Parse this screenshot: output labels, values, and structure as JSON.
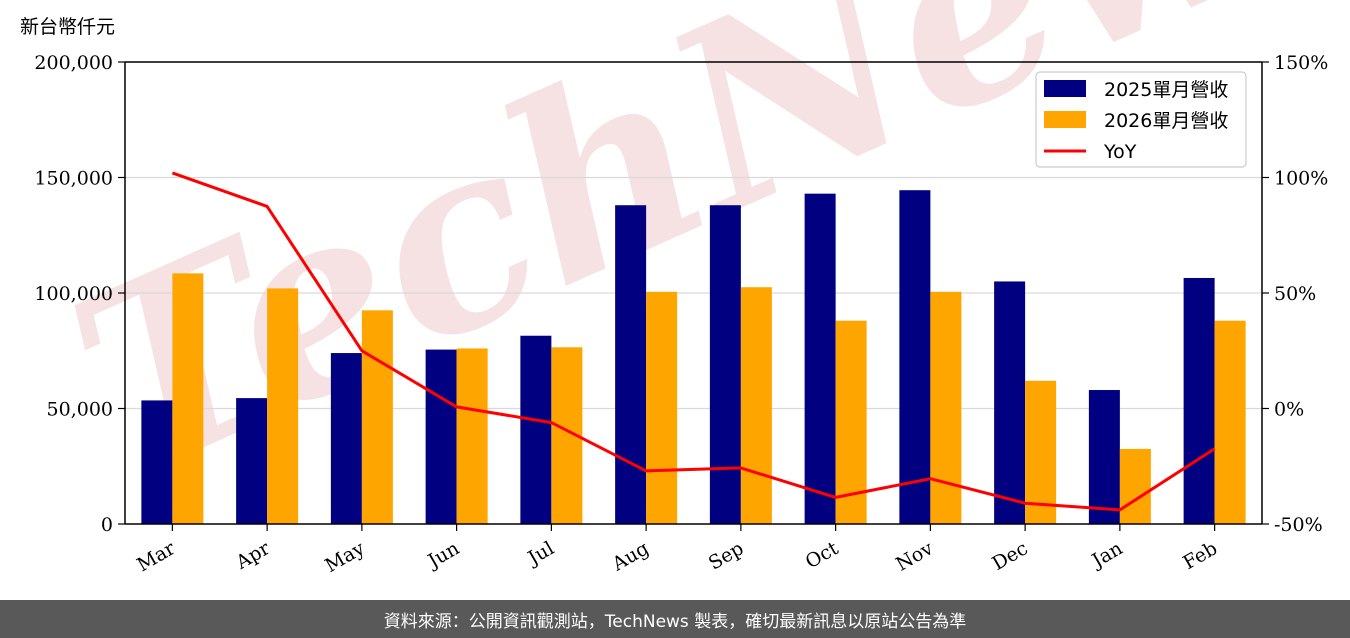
{
  "unit_label": "新台幣仟元",
  "watermark": "TechNews",
  "footer_text": "資料來源：公開資訊觀測站，TechNews 製表，確切最新訊息以原站公告為準",
  "colors": {
    "series_2025": "#000080",
    "series_2026": "#FFA500",
    "yoy": "#FF0000",
    "grid": "#d9d9d9",
    "footer_bg": "#595959",
    "watermark": "#f0cccc"
  },
  "chart_data": {
    "type": "bar",
    "categories": [
      "Mar",
      "Apr",
      "May",
      "Jun",
      "Jul",
      "Aug",
      "Sep",
      "Oct",
      "Nov",
      "Dec",
      "Jan",
      "Feb"
    ],
    "series": [
      {
        "name": "2025單月營收",
        "values": [
          53500,
          54500,
          74000,
          75500,
          81500,
          138000,
          138000,
          143000,
          144500,
          105000,
          58000,
          106500
        ]
      },
      {
        "name": "2026單月營收",
        "values": [
          108500,
          102000,
          92500,
          76000,
          76500,
          100500,
          102500,
          88000,
          100500,
          62000,
          32500,
          88000
        ]
      }
    ],
    "line_series": {
      "name": "YoY",
      "axis": "right",
      "values": [
        102,
        87.5,
        25,
        0.7,
        -6.1,
        -27,
        -25.7,
        -38.5,
        -30.4,
        -41,
        -43.9,
        -17.4
      ]
    },
    "ylim": [
      0,
      200000
    ],
    "y_ticks": [
      "0",
      "50,000",
      "100,000",
      "150,000",
      "200,000"
    ],
    "y2lim": [
      -50,
      150
    ],
    "y2_ticks": [
      "-50%",
      "0%",
      "50%",
      "100%",
      "150%"
    ],
    "grid": "horizontal",
    "legend_position": "top-right"
  }
}
